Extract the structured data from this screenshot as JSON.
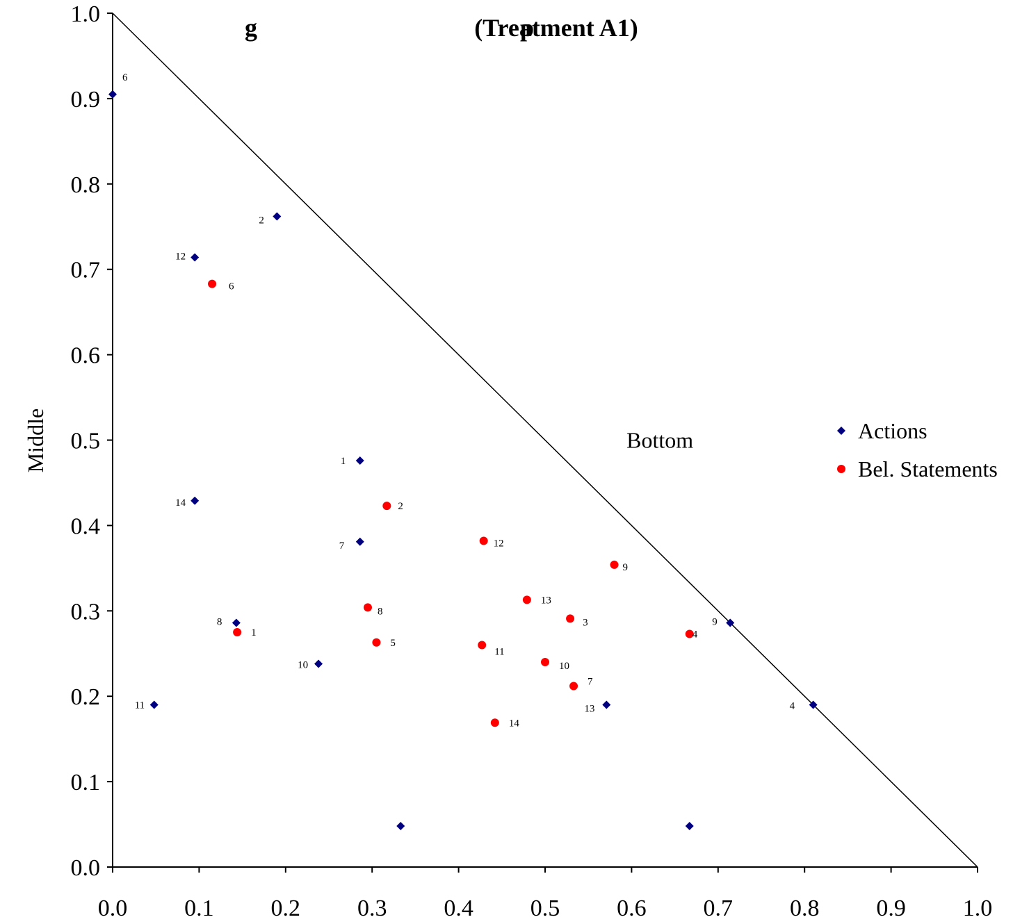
{
  "chart_data": {
    "type": "scatter",
    "title": "(Treatment A1)",
    "title_partial": "g                                          p",
    "ylabel": "Middle",
    "xlabel": "",
    "xlim": [
      0,
      1
    ],
    "ylim": [
      0,
      1
    ],
    "x_ticks": [
      "0.0",
      "0.1",
      "0.2",
      "0.3",
      "0.4",
      "0.5",
      "0.6",
      "0.7",
      "0.8",
      "0.9",
      "1.0"
    ],
    "y_ticks": [
      "0.0",
      "0.1",
      "0.2",
      "0.3",
      "0.4",
      "0.5",
      "0.6",
      "0.7",
      "0.8",
      "0.9",
      "1.0"
    ],
    "grid": false,
    "legend_position": "right",
    "annotations": [
      {
        "text": "Bottom",
        "x": 0.64,
        "y": 0.5
      }
    ],
    "diagonal_line": {
      "from": [
        0,
        1
      ],
      "to": [
        1,
        0
      ]
    },
    "series": [
      {
        "name": "Actions",
        "marker": "diamond",
        "color": "#000080",
        "points": [
          {
            "label": "6",
            "x": 0.0,
            "y": 0.905
          },
          {
            "label": "2",
            "x": 0.19,
            "y": 0.762
          },
          {
            "label": "12",
            "x": 0.095,
            "y": 0.714
          },
          {
            "label": "1",
            "x": 0.286,
            "y": 0.476
          },
          {
            "label": "14",
            "x": 0.095,
            "y": 0.429
          },
          {
            "label": "7",
            "x": 0.286,
            "y": 0.381
          },
          {
            "label": "8",
            "x": 0.143,
            "y": 0.286
          },
          {
            "label": "10",
            "x": 0.238,
            "y": 0.238
          },
          {
            "label": "11",
            "x": 0.048,
            "y": 0.19
          },
          {
            "label": "9",
            "x": 0.714,
            "y": 0.286
          },
          {
            "label": "13",
            "x": 0.571,
            "y": 0.19
          },
          {
            "label": "4",
            "x": 0.81,
            "y": 0.19
          },
          {
            "label": "",
            "x": 0.333,
            "y": 0.048
          },
          {
            "label": "",
            "x": 0.667,
            "y": 0.048
          }
        ]
      },
      {
        "name": "Bel. Statements",
        "marker": "circle",
        "color": "#ff0000",
        "points": [
          {
            "label": "6",
            "x": 0.115,
            "y": 0.683
          },
          {
            "label": "2",
            "x": 0.317,
            "y": 0.423
          },
          {
            "label": "12",
            "x": 0.429,
            "y": 0.382
          },
          {
            "label": "9",
            "x": 0.58,
            "y": 0.354
          },
          {
            "label": "13",
            "x": 0.479,
            "y": 0.313
          },
          {
            "label": "8",
            "x": 0.295,
            "y": 0.304
          },
          {
            "label": "3",
            "x": 0.529,
            "y": 0.291
          },
          {
            "label": "4",
            "x": 0.667,
            "y": 0.273
          },
          {
            "label": "1",
            "x": 0.144,
            "y": 0.275
          },
          {
            "label": "5",
            "x": 0.305,
            "y": 0.263
          },
          {
            "label": "11",
            "x": 0.427,
            "y": 0.26
          },
          {
            "label": "10",
            "x": 0.5,
            "y": 0.24
          },
          {
            "label": "7",
            "x": 0.533,
            "y": 0.212
          },
          {
            "label": "14",
            "x": 0.442,
            "y": 0.169
          }
        ]
      }
    ]
  }
}
